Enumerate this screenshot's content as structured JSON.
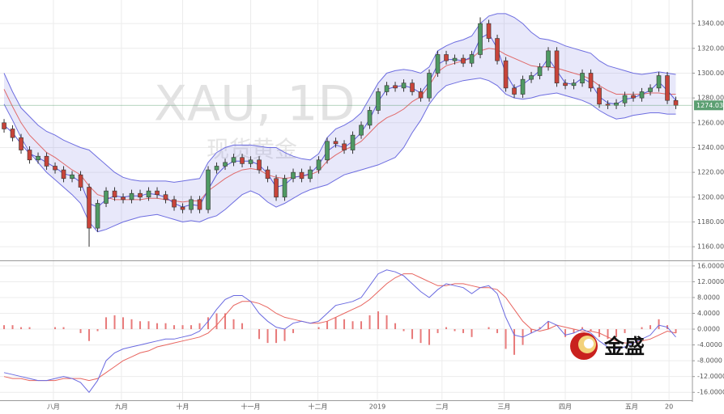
{
  "watermark": "XAU, 1D",
  "watermark_sub": "现货黄金",
  "logo": "金盛",
  "chart_data": [
    {
      "type": "candlestick",
      "xlim": [
        -0.48,
        80.95
      ],
      "xticks": [
        {
          "value": 5.8,
          "label": "八月"
        },
        {
          "value": 13.8,
          "label": "九月"
        },
        {
          "value": 21.0,
          "label": "十月"
        },
        {
          "value": 29.0,
          "label": "十一月"
        },
        {
          "value": 36.9,
          "label": "十二月"
        },
        {
          "value": 43.9,
          "label": "2019"
        },
        {
          "value": 51.5,
          "label": "二月"
        },
        {
          "value": 58.8,
          "label": "三月"
        },
        {
          "value": 66.0,
          "label": "四月"
        },
        {
          "value": 73.8,
          "label": "五月"
        },
        {
          "value": 78.2,
          "label": "20"
        }
      ],
      "ylim": [
        1149,
        1359
      ],
      "yticks": [
        {
          "value": 1160,
          "label": "1160.00"
        },
        {
          "value": 1180,
          "label": "1180.00"
        },
        {
          "value": 1200,
          "label": "1200.00"
        },
        {
          "value": 1220,
          "label": "1220.00"
        },
        {
          "value": 1240,
          "label": "1240.00"
        },
        {
          "value": 1260,
          "label": "1260.00"
        },
        {
          "value": 1280,
          "label": "1280.00"
        },
        {
          "value": 1300,
          "label": "1300.00"
        },
        {
          "value": 1320,
          "label": "1320.00"
        },
        {
          "value": 1340,
          "label": "1340.00"
        }
      ],
      "grid": true,
      "up_color": "#4f9a63",
      "down_color": "#c8443a",
      "band_color": "#6d6de0",
      "ma_slow_color": "#e06a6a",
      "ma_fast_color": "#5a5ad8",
      "last_color": "#5c9f72",
      "open": [
        1260,
        1255,
        1248,
        1238,
        1230,
        1233,
        1225,
        1222,
        1215,
        1218,
        1208,
        1175,
        1195,
        1205,
        1200,
        1198,
        1203,
        1200,
        1205,
        1202,
        1198,
        1192,
        1190,
        1198,
        1190,
        1222,
        1225,
        1228,
        1232,
        1227,
        1230,
        1222,
        1215,
        1200,
        1215,
        1220,
        1215,
        1222,
        1230,
        1245,
        1243,
        1238,
        1250,
        1258,
        1270,
        1285,
        1290,
        1288,
        1292,
        1285,
        1280,
        1300,
        1315,
        1310,
        1312,
        1308,
        1315,
        1340,
        1328,
        1310,
        1288,
        1283,
        1295,
        1298,
        1305,
        1318,
        1292,
        1290,
        1292,
        1300,
        1288,
        1275,
        1274,
        1276,
        1282,
        1280,
        1285,
        1288,
        1298,
        1278
      ],
      "high": [
        1263,
        1258,
        1251,
        1241,
        1236,
        1236,
        1228,
        1225,
        1221,
        1221,
        1211,
        1198,
        1208,
        1208,
        1203,
        1206,
        1206,
        1208,
        1208,
        1205,
        1201,
        1195,
        1201,
        1201,
        1225,
        1228,
        1231,
        1235,
        1235,
        1233,
        1233,
        1225,
        1218,
        1218,
        1223,
        1223,
        1225,
        1233,
        1248,
        1248,
        1246,
        1253,
        1261,
        1273,
        1288,
        1293,
        1293,
        1295,
        1295,
        1288,
        1303,
        1318,
        1318,
        1315,
        1315,
        1318,
        1345,
        1343,
        1331,
        1313,
        1291,
        1298,
        1301,
        1308,
        1321,
        1321,
        1295,
        1295,
        1303,
        1303,
        1291,
        1278,
        1279,
        1285,
        1285,
        1288,
        1291,
        1301,
        1301,
        1281
      ],
      "low": [
        1252,
        1245,
        1235,
        1227,
        1227,
        1222,
        1219,
        1212,
        1212,
        1205,
        1160,
        1172,
        1192,
        1197,
        1195,
        1195,
        1197,
        1197,
        1199,
        1195,
        1189,
        1187,
        1187,
        1187,
        1187,
        1219,
        1222,
        1225,
        1224,
        1224,
        1219,
        1212,
        1197,
        1197,
        1212,
        1212,
        1212,
        1219,
        1227,
        1240,
        1235,
        1235,
        1247,
        1255,
        1267,
        1282,
        1285,
        1285,
        1282,
        1277,
        1277,
        1297,
        1307,
        1307,
        1305,
        1305,
        1312,
        1325,
        1307,
        1285,
        1280,
        1280,
        1292,
        1295,
        1302,
        1289,
        1287,
        1287,
        1289,
        1285,
        1272,
        1271,
        1271,
        1273,
        1277,
        1277,
        1282,
        1285,
        1275,
        1271
      ],
      "close": [
        1255,
        1248,
        1238,
        1230,
        1233,
        1225,
        1222,
        1215,
        1218,
        1208,
        1175,
        1195,
        1205,
        1200,
        1198,
        1203,
        1200,
        1205,
        1202,
        1198,
        1192,
        1190,
        1198,
        1190,
        1222,
        1225,
        1228,
        1232,
        1227,
        1230,
        1222,
        1215,
        1200,
        1215,
        1220,
        1215,
        1222,
        1230,
        1245,
        1243,
        1238,
        1250,
        1258,
        1270,
        1285,
        1290,
        1288,
        1292,
        1285,
        1280,
        1300,
        1315,
        1310,
        1312,
        1308,
        1315,
        1340,
        1328,
        1310,
        1288,
        1283,
        1295,
        1298,
        1305,
        1318,
        1292,
        1290,
        1292,
        1300,
        1288,
        1275,
        1274,
        1276,
        1282,
        1280,
        1285,
        1288,
        1298,
        1278,
        1274.03
      ],
      "upper": [
        1300,
        1285,
        1272,
        1265,
        1258,
        1253,
        1250,
        1246,
        1243,
        1240,
        1238,
        1232,
        1226,
        1220,
        1216,
        1214,
        1213,
        1213,
        1213,
        1213,
        1212,
        1213,
        1214,
        1215,
        1228,
        1236,
        1240,
        1242,
        1242,
        1242,
        1241,
        1240,
        1240,
        1236,
        1233,
        1231,
        1230,
        1235,
        1248,
        1255,
        1258,
        1262,
        1268,
        1280,
        1292,
        1300,
        1302,
        1303,
        1302,
        1300,
        1305,
        1318,
        1322,
        1325,
        1327,
        1330,
        1340,
        1346,
        1348,
        1348,
        1345,
        1340,
        1333,
        1328,
        1327,
        1325,
        1322,
        1320,
        1318,
        1316,
        1310,
        1306,
        1304,
        1302,
        1300,
        1299,
        1300,
        1301,
        1300,
        1299
      ],
      "lower": [
        1275,
        1262,
        1248,
        1236,
        1228,
        1220,
        1214,
        1208,
        1202,
        1195,
        1180,
        1172,
        1174,
        1177,
        1180,
        1182,
        1184,
        1185,
        1186,
        1184,
        1182,
        1180,
        1181,
        1180,
        1183,
        1185,
        1190,
        1196,
        1202,
        1205,
        1202,
        1196,
        1192,
        1195,
        1199,
        1203,
        1206,
        1208,
        1210,
        1214,
        1218,
        1220,
        1222,
        1224,
        1226,
        1229,
        1232,
        1240,
        1252,
        1262,
        1275,
        1284,
        1290,
        1292,
        1294,
        1295,
        1296,
        1294,
        1290,
        1283,
        1280,
        1279,
        1280,
        1282,
        1283,
        1284,
        1282,
        1280,
        1278,
        1275,
        1270,
        1266,
        1263,
        1264,
        1266,
        1267,
        1268,
        1268,
        1267,
        1267
      ],
      "ma_slow": [
        1287,
        1273,
        1260,
        1250,
        1243,
        1236,
        1232,
        1227,
        1222,
        1218,
        1209,
        1202,
        1200,
        1198,
        1198,
        1198,
        1198,
        1199,
        1199,
        1198,
        1197,
        1196,
        1197,
        1197,
        1205,
        1210,
        1215,
        1219,
        1222,
        1223,
        1222,
        1218,
        1216,
        1215,
        1216,
        1217,
        1218,
        1221,
        1229,
        1234,
        1238,
        1241,
        1245,
        1252,
        1259,
        1264,
        1267,
        1271,
        1277,
        1281,
        1290,
        1301,
        1306,
        1308,
        1310,
        1312,
        1318,
        1320,
        1319,
        1315,
        1312,
        1309,
        1306,
        1305,
        1305,
        1304,
        1302,
        1300,
        1298,
        1295,
        1290,
        1286,
        1283,
        1283,
        1283,
        1283,
        1284,
        1284,
        1283,
        1283
      ],
      "ma_fast": [
        1258,
        1252,
        1243,
        1235,
        1232,
        1228,
        1224,
        1219,
        1217,
        1212,
        1195,
        1192,
        1198,
        1201,
        1200,
        1201,
        1201,
        1203,
        1202,
        1200,
        1195,
        1192,
        1194,
        1193,
        1206,
        1218,
        1225,
        1229,
        1229,
        1229,
        1226,
        1219,
        1208,
        1210,
        1216,
        1217,
        1219,
        1226,
        1237,
        1242,
        1240,
        1245,
        1252,
        1263,
        1277,
        1287,
        1289,
        1290,
        1288,
        1284,
        1293,
        1307,
        1311,
        1311,
        1310,
        1313,
        1328,
        1332,
        1320,
        1300,
        1288,
        1291,
        1296,
        1302,
        1312,
        1302,
        1292,
        1291,
        1296,
        1292,
        1281,
        1276,
        1275,
        1279,
        1280,
        1283,
        1286,
        1293,
        1286,
        1278
      ]
    },
    {
      "type": "macd",
      "ylim": [
        -18,
        17.2
      ],
      "yticks": [
        {
          "value": -16,
          "label": "-16.0000"
        },
        {
          "value": -12,
          "label": "-12.0000"
        },
        {
          "value": -8,
          "label": "-8.0000"
        },
        {
          "value": -4,
          "label": "-4.0000"
        },
        {
          "value": 0,
          "label": "0.0000"
        },
        {
          "value": 4,
          "label": "4.0000"
        },
        {
          "value": 8,
          "label": "8.0000"
        },
        {
          "value": 12,
          "label": "12.0000"
        },
        {
          "value": 16,
          "label": "16.0000"
        }
      ],
      "grid": true,
      "macd_color": "#6a6ae0",
      "signal_color": "#e8655f",
      "hist_color": "#e87a7a",
      "macd": [
        -11,
        -11.5,
        -12,
        -12.5,
        -13,
        -13,
        -12.5,
        -12,
        -12.5,
        -13.5,
        -16,
        -13,
        -8,
        -6,
        -5,
        -4.5,
        -4,
        -3.5,
        -3,
        -2.5,
        -2.5,
        -2,
        -1.5,
        -0.5,
        2,
        5,
        7.5,
        8.5,
        8.5,
        7,
        4,
        2,
        0.5,
        0,
        1.5,
        2,
        1.5,
        2,
        4,
        6,
        6.5,
        7,
        8,
        11,
        14,
        15,
        14.5,
        13.5,
        11.5,
        9.5,
        8,
        10,
        11.5,
        11,
        10.5,
        9,
        10.5,
        11,
        9,
        3,
        -1.5,
        -2,
        -1,
        0,
        2,
        1,
        -1.5,
        -1,
        0,
        -1,
        -3,
        -4.5,
        -5,
        -4.5,
        -3.5,
        -2.5,
        -1.5,
        1,
        0.5,
        -2
      ],
      "signal": [
        -12,
        -12.5,
        -12.5,
        -13,
        -13,
        -13,
        -13,
        -12.5,
        -12.5,
        -12.5,
        -13,
        -12.5,
        -11,
        -9.5,
        -8,
        -7,
        -6,
        -5.5,
        -4.5,
        -4,
        -3.5,
        -3,
        -2.5,
        -2,
        -1,
        1,
        3.5,
        6,
        7,
        7,
        6.5,
        5.5,
        4,
        3,
        2.5,
        2,
        1.5,
        1.5,
        2,
        3,
        4,
        5,
        6,
        7.5,
        9.5,
        11.5,
        13,
        14,
        14,
        13,
        12,
        11,
        11,
        11.5,
        11.5,
        11,
        10.5,
        10.5,
        10,
        8,
        5,
        2,
        0,
        -0.5,
        0,
        1,
        0.5,
        0,
        -0.5,
        -0.5,
        -1,
        -2,
        -3,
        -3.5,
        -3.5,
        -3,
        -2.5,
        -1.5,
        -0.5,
        -1
      ],
      "histogram": [
        1,
        1,
        0.5,
        0.5,
        0,
        0,
        0.5,
        0.5,
        0,
        -1,
        -3,
        -0.5,
        3,
        3.5,
        3,
        2.5,
        2,
        2,
        1.5,
        1.5,
        1,
        1,
        1,
        1.5,
        3,
        4,
        4,
        2.5,
        1.5,
        0,
        -2.5,
        -3.5,
        -3.5,
        -3,
        -1,
        0,
        0,
        0.5,
        2,
        3,
        2.5,
        2,
        2,
        3.5,
        4.5,
        3.5,
        1.5,
        -0.5,
        -2.5,
        -3.5,
        -4,
        -1,
        0.5,
        -0.5,
        -1,
        -2,
        0,
        0.5,
        -1,
        -5,
        -6.5,
        -4,
        -1,
        0.5,
        2,
        0,
        -2,
        -1,
        0.5,
        -0.5,
        -2,
        -2.5,
        -2,
        -1,
        0,
        0.5,
        1,
        2.5,
        1,
        -1
      ]
    }
  ]
}
